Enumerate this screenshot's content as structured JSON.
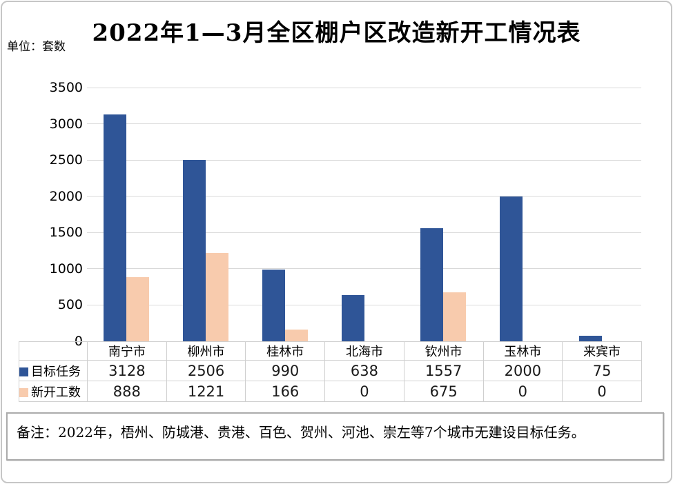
{
  "title": "2022年1—3月全区棚户区改造新开工情况表",
  "unit_label": "单位：套数",
  "note": "备注：2022年，梧州、防城港、贵港、百色、贺州、河池、崇左等7个城市无建设目标任务。",
  "colors": {
    "target_series": "#2F5597",
    "started_series": "#F8CBAD",
    "gridline": "#D9D9D9",
    "table_border": "#CFCFCF"
  },
  "chart_data": {
    "type": "bar",
    "title": "2022年1—3月全区棚户区改造新开工情况表",
    "ylabel": "单位：套数",
    "categories": [
      "南宁市",
      "柳州市",
      "桂林市",
      "北海市",
      "钦州市",
      "玉林市",
      "来宾市"
    ],
    "series": [
      {
        "name": "目标任务",
        "color": "#2F5597",
        "values": [
          3128,
          2506,
          990,
          638,
          1557,
          2000,
          75
        ]
      },
      {
        "name": "新开工数",
        "color": "#F8CBAD",
        "values": [
          888,
          1221,
          166,
          0,
          675,
          0,
          0
        ]
      }
    ],
    "ylim": [
      0,
      3500
    ],
    "yticks": [
      0,
      500,
      1000,
      1500,
      2000,
      2500,
      3000,
      3500
    ],
    "grid": true,
    "legend_position": "table-left"
  }
}
